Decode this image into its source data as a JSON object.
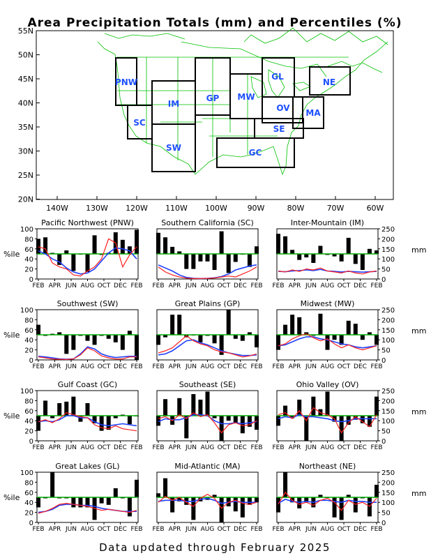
{
  "title": "Area Precipitation Totals (mm) and Percentiles (%)",
  "footer": "Data updated through February 2025",
  "map": {
    "lat_labels": [
      "55N",
      "50N",
      "45N",
      "40N",
      "35N",
      "30N",
      "25N",
      "20N"
    ],
    "lon_labels": [
      "140W",
      "130W",
      "120W",
      "110W",
      "100W",
      "90W",
      "80W",
      "70W",
      "60W"
    ],
    "regions": [
      {
        "code": "PNW",
        "label": "PNW"
      },
      {
        "code": "SC",
        "label": "SC"
      },
      {
        "code": "IM",
        "label": "IM"
      },
      {
        "code": "SW",
        "label": "SW"
      },
      {
        "code": "GP",
        "label": "GP"
      },
      {
        "code": "MW",
        "label": "MW"
      },
      {
        "code": "GL",
        "label": "GL"
      },
      {
        "code": "OV",
        "label": "OV"
      },
      {
        "code": "NE",
        "label": "NE"
      },
      {
        "code": "MA",
        "label": "MA"
      },
      {
        "code": "SE",
        "label": "SE"
      },
      {
        "code": "GC",
        "label": "GC"
      }
    ],
    "colors": {
      "land_outline": "#00c000",
      "region_box": "#000000",
      "region_label": "#1e50ff"
    }
  },
  "axis": {
    "left_label": "%ile",
    "right_label": "mm",
    "pct_ticks": [
      "0",
      "20",
      "40",
      "60",
      "80",
      "100"
    ],
    "mm_ticks": [
      "0",
      "50",
      "100",
      "150",
      "200",
      "250"
    ],
    "x_ticks": [
      "FEB",
      "APR",
      "JUN",
      "AUG",
      "OCT",
      "DEC",
      "FEB"
    ]
  },
  "colors": {
    "bars": "#000000",
    "median": "#00aa00",
    "precip_line": "#ff2020",
    "normal_line": "#2040ff"
  },
  "chart_data": [
    {
      "type": "bar",
      "title": "Pacific Northwest (PNW)",
      "percentiles": [
        80,
        83,
        52,
        28,
        57,
        16,
        50,
        14,
        87,
        48,
        52,
        93,
        78,
        65,
        98
      ],
      "precip_mm": [
        160,
        150,
        80,
        60,
        50,
        20,
        15,
        40,
        60,
        100,
        200,
        180,
        60,
        120,
        160
      ],
      "normal_mm": [
        140,
        125,
        100,
        85,
        55,
        35,
        25,
        30,
        50,
        90,
        130,
        155,
        150,
        140,
        100
      ]
    },
    {
      "type": "bar",
      "title": "Southern California (SC)",
      "percentiles": [
        92,
        83,
        64,
        55,
        20,
        20,
        35,
        35,
        18,
        95,
        12,
        34,
        50,
        24,
        65
      ],
      "precip_mm": [
        60,
        35,
        20,
        10,
        4,
        2,
        2,
        3,
        5,
        10,
        15,
        10,
        25,
        40,
        60
      ],
      "normal_mm": [
        70,
        55,
        40,
        20,
        8,
        3,
        2,
        3,
        6,
        12,
        25,
        45,
        55,
        65,
        70
      ]
    },
    {
      "type": "bar",
      "title": "Inter-Mountain (IM)",
      "percentiles": [
        90,
        85,
        58,
        38,
        43,
        32,
        66,
        48,
        45,
        35,
        82,
        30,
        18,
        60,
        57
      ],
      "precip_mm": [
        40,
        35,
        45,
        38,
        50,
        45,
        55,
        40,
        35,
        30,
        40,
        30,
        25,
        35,
        40
      ],
      "normal_mm": [
        38,
        36,
        40,
        42,
        45,
        42,
        48,
        40,
        38,
        35,
        38,
        36,
        34,
        36,
        38
      ]
    },
    {
      "type": "bar",
      "title": "Southwest (SW)",
      "percentiles": [
        70,
        48,
        52,
        55,
        12,
        20,
        48,
        38,
        30,
        48,
        42,
        35,
        20,
        58,
        0
      ],
      "precip_mm": [
        15,
        10,
        5,
        3,
        2,
        5,
        25,
        60,
        45,
        20,
        10,
        5,
        5,
        15,
        15
      ],
      "normal_mm": [
        18,
        15,
        10,
        5,
        3,
        5,
        30,
        65,
        55,
        30,
        18,
        12,
        15,
        18,
        18
      ]
    },
    {
      "type": "bar",
      "title": "Great Plains (GP)",
      "percentiles": [
        30,
        45,
        90,
        90,
        45,
        50,
        35,
        48,
        33,
        10,
        100,
        42,
        38,
        55,
        25
      ],
      "precip_mm": [
        35,
        45,
        60,
        90,
        120,
        95,
        80,
        70,
        50,
        40,
        35,
        25,
        15,
        20,
        30
      ],
      "normal_mm": [
        25,
        30,
        45,
        70,
        95,
        100,
        85,
        75,
        60,
        45,
        35,
        28,
        22,
        22,
        25
      ]
    },
    {
      "type": "bar",
      "title": "Midwest (MW)",
      "percentiles": [
        20,
        70,
        90,
        85,
        55,
        48,
        92,
        20,
        40,
        30,
        78,
        72,
        40,
        55,
        30
      ],
      "precip_mm": [
        70,
        80,
        105,
        120,
        130,
        110,
        95,
        105,
        80,
        60,
        75,
        60,
        50,
        60,
        70
      ],
      "normal_mm": [
        70,
        75,
        90,
        105,
        115,
        115,
        105,
        100,
        90,
        80,
        75,
        65,
        60,
        65,
        70
      ]
    },
    {
      "type": "bar",
      "title": "Gulf Coast (GC)",
      "percentiles": [
        20,
        80,
        45,
        75,
        78,
        88,
        38,
        75,
        35,
        20,
        22,
        45,
        52,
        33,
        50
      ],
      "precip_mm": [
        95,
        105,
        90,
        110,
        140,
        130,
        120,
        115,
        80,
        65,
        60,
        75,
        60,
        55,
        50
      ],
      "normal_mm": [
        95,
        100,
        95,
        105,
        125,
        125,
        115,
        115,
        95,
        80,
        75,
        80,
        85,
        80,
        75
      ]
    },
    {
      "type": "bar",
      "title": "Southeast (SE)",
      "percentiles": [
        30,
        83,
        32,
        85,
        5,
        93,
        82,
        98,
        45,
        0,
        40,
        35,
        15,
        28,
        22
      ],
      "precip_mm": [
        110,
        120,
        100,
        130,
        110,
        140,
        120,
        130,
        90,
        40,
        80,
        90,
        75,
        80,
        100
      ],
      "normal_mm": [
        95,
        110,
        105,
        105,
        115,
        130,
        130,
        125,
        100,
        85,
        85,
        90,
        85,
        90,
        95
      ]
    },
    {
      "type": "bar",
      "title": "Ohio Valley (OV)",
      "percentiles": [
        30,
        70,
        45,
        82,
        0,
        88,
        63,
        98,
        38,
        0,
        32,
        42,
        35,
        28,
        88
      ],
      "precip_mm": [
        130,
        140,
        110,
        150,
        100,
        165,
        140,
        130,
        110,
        40,
        90,
        120,
        95,
        70,
        130
      ],
      "normal_mm": [
        110,
        120,
        115,
        130,
        120,
        120,
        115,
        110,
        100,
        95,
        100,
        110,
        110,
        110,
        110
      ]
    },
    {
      "type": "bar",
      "title": "Great Lakes (GL)",
      "percentiles": [
        30,
        48,
        100,
        48,
        48,
        30,
        30,
        30,
        5,
        38,
        35,
        68,
        48,
        12,
        85
      ],
      "precip_mm": [
        45,
        55,
        70,
        90,
        95,
        90,
        85,
        80,
        70,
        60,
        65,
        60,
        55,
        50,
        60
      ],
      "normal_mm": [
        50,
        55,
        65,
        85,
        90,
        90,
        85,
        85,
        80,
        70,
        65,
        60,
        55,
        55,
        55
      ],
      "median_line": true
    },
    {
      "type": "bar",
      "title": "Mid-Atlantic (MA)",
      "percentiles": [
        58,
        88,
        20,
        42,
        35,
        5,
        42,
        45,
        55,
        0,
        32,
        22,
        10,
        35,
        40
      ],
      "precip_mm": [
        100,
        130,
        110,
        125,
        100,
        80,
        120,
        140,
        120,
        70,
        100,
        110,
        95,
        90,
        100
      ],
      "normal_mm": [
        105,
        110,
        110,
        110,
        105,
        105,
        115,
        120,
        110,
        95,
        100,
        105,
        100,
        100,
        100
      ]
    },
    {
      "type": "bar",
      "title": "Northeast (NE)",
      "percentiles": [
        20,
        100,
        40,
        28,
        40,
        30,
        55,
        50,
        10,
        5,
        55,
        20,
        48,
        12,
        75
      ],
      "precip_mm": [
        90,
        150,
        110,
        90,
        100,
        85,
        110,
        120,
        100,
        60,
        110,
        90,
        100,
        80,
        120
      ],
      "normal_mm": [
        95,
        115,
        105,
        100,
        105,
        100,
        110,
        110,
        105,
        100,
        110,
        105,
        105,
        100,
        100
      ]
    }
  ]
}
